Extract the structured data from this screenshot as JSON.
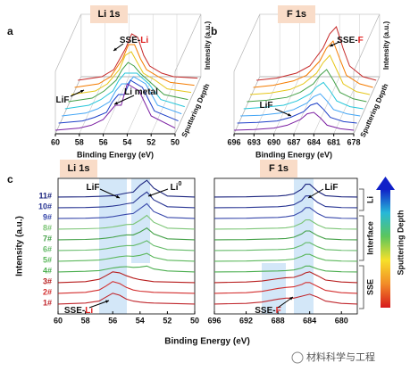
{
  "chart_data": [
    {
      "type": "waterfall3d",
      "panel": "a",
      "title": "Li 1s",
      "xlabel": "Binding Energy (eV)",
      "ylabel": "Intensity (a.u.)",
      "zlabel": "Sputtering Depth",
      "x": [
        60,
        58,
        57,
        56,
        55.5,
        55,
        54.5,
        54,
        53,
        52,
        50
      ],
      "xlim": [
        60,
        50
      ],
      "xticks": [
        60,
        58,
        56,
        54,
        52,
        50
      ],
      "annotations": [
        {
          "text": "SSE-",
          "accent": "Li"
        },
        {
          "text": "LiF"
        },
        {
          "text": "Li metal"
        }
      ],
      "series": [
        {
          "color": "#c62828",
          "values": [
            0.5,
            1,
            2,
            5,
            7,
            6.5,
            4,
            2.5,
            1.5,
            1,
            0.8
          ]
        },
        {
          "color": "#f57c00",
          "values": [
            0.5,
            1,
            2,
            4.5,
            6.5,
            6.5,
            4.5,
            3,
            2,
            1.2,
            0.8
          ]
        },
        {
          "color": "#e6c619",
          "values": [
            0.5,
            1,
            2,
            4,
            6,
            6.5,
            5,
            3.5,
            2.5,
            1.3,
            0.8
          ]
        },
        {
          "color": "#43a047",
          "values": [
            0.5,
            1,
            2,
            3.5,
            5,
            6,
            5.5,
            4.5,
            3,
            1.5,
            0.8
          ]
        },
        {
          "color": "#26c6da",
          "values": [
            0.5,
            1,
            1.8,
            3,
            4.5,
            5.5,
            5.5,
            5.5,
            4,
            1.8,
            0.8
          ]
        },
        {
          "color": "#42a5f5",
          "values": [
            0.5,
            0.9,
            1.5,
            2.5,
            4,
            5,
            5,
            6,
            5,
            2,
            0.8
          ]
        },
        {
          "color": "#1e40c8",
          "values": [
            0.5,
            0.8,
            1.3,
            2,
            3.5,
            4.5,
            4.5,
            6.5,
            5.5,
            2.2,
            0.8
          ]
        },
        {
          "color": "#7b1fa2",
          "values": [
            0.5,
            0.8,
            1.2,
            2,
            3,
            4,
            4,
            7,
            6,
            2.5,
            0.8
          ]
        }
      ]
    },
    {
      "type": "waterfall3d",
      "panel": "b",
      "title": "F 1s",
      "xlabel": "Binding Energy (eV)",
      "ylabel": "Intensity (a.u.)",
      "zlabel": "Sputtering Depth",
      "x": [
        696,
        693,
        690,
        688,
        686,
        685,
        684,
        683,
        682,
        680,
        678
      ],
      "xlim": [
        696,
        678
      ],
      "xticks": [
        696,
        693,
        690,
        687,
        684,
        681,
        678
      ],
      "annotations": [
        {
          "text": "SSE-",
          "accent": "F"
        },
        {
          "text": "LiF"
        }
      ],
      "series": [
        {
          "color": "#c62828",
          "values": [
            0.5,
            0.8,
            1.5,
            2.5,
            5,
            7,
            8,
            5,
            2.5,
            1,
            0.5
          ]
        },
        {
          "color": "#f57c00",
          "values": [
            0.5,
            0.8,
            1.4,
            2.2,
            4.2,
            6,
            7,
            4.5,
            2.2,
            1,
            0.5
          ]
        },
        {
          "color": "#e6c619",
          "values": [
            0.5,
            0.7,
            1.2,
            2,
            3.5,
            5,
            6,
            4,
            2,
            0.9,
            0.5
          ]
        },
        {
          "color": "#43a047",
          "values": [
            0.5,
            0.7,
            1.1,
            1.8,
            3,
            4.2,
            5,
            3.5,
            1.8,
            0.9,
            0.5
          ]
        },
        {
          "color": "#26c6da",
          "values": [
            0.5,
            0.7,
            1,
            1.6,
            2.6,
            3.6,
            4.2,
            3,
            1.6,
            0.8,
            0.5
          ]
        },
        {
          "color": "#42a5f5",
          "values": [
            0.5,
            0.6,
            0.9,
            1.4,
            2.3,
            3.2,
            3.6,
            2.6,
            1.4,
            0.8,
            0.5
          ]
        },
        {
          "color": "#1e40c8",
          "values": [
            0.5,
            0.6,
            0.8,
            1.3,
            2.1,
            3,
            3.3,
            2.4,
            1.3,
            0.7,
            0.5
          ]
        },
        {
          "color": "#7b1fa2",
          "values": [
            0.5,
            0.6,
            0.8,
            1.2,
            2,
            2.8,
            3,
            2.2,
            1.2,
            0.7,
            0.5
          ]
        }
      ]
    },
    {
      "type": "stacked",
      "panel": "c",
      "title": "Li 1s",
      "xlabel": "Binding Energy (eV)",
      "ylabel": "Intensity (a.u.)",
      "x": [
        60,
        58,
        57,
        56.5,
        56,
        55.5,
        55,
        54.5,
        54,
        53.5,
        53,
        52,
        50
      ],
      "xlim": [
        60,
        50
      ],
      "xticks": [
        60,
        58,
        56,
        54,
        52,
        50
      ],
      "annotations": [
        {
          "text": "LiF"
        },
        {
          "text": "Li",
          "sup": "0"
        },
        {
          "text": "SSE-",
          "accent": "Li"
        }
      ],
      "series": [
        {
          "name": "1#",
          "color": "#c0272d",
          "values": [
            0.5,
            1,
            2,
            4,
            6,
            5,
            3,
            2,
            1.5,
            1.2,
            1,
            0.8,
            0.5
          ]
        },
        {
          "name": "2#",
          "color": "#d32f2f",
          "values": [
            0.5,
            1,
            2.2,
            4.2,
            6.5,
            5.5,
            3.5,
            2.2,
            1.6,
            1.3,
            1,
            0.8,
            0.5
          ]
        },
        {
          "name": "3#",
          "color": "#b71c1c",
          "values": [
            0.5,
            1,
            2.2,
            4,
            6,
            5.5,
            4,
            2.8,
            2,
            1.5,
            1,
            0.8,
            0.5
          ]
        },
        {
          "name": "4#",
          "color": "#4caf50",
          "values": [
            0.5,
            0.8,
            1.2,
            1.8,
            2.5,
            3,
            3.2,
            2.8,
            3,
            3.5,
            2,
            1,
            0.5
          ]
        },
        {
          "name": "5#",
          "color": "#5cb85c",
          "values": [
            0.5,
            0.8,
            1.1,
            1.6,
            2.2,
            2.8,
            3.2,
            3,
            3.5,
            4.5,
            2.5,
            1,
            0.5
          ]
        },
        {
          "name": "6#",
          "color": "#66bb6a",
          "values": [
            0.5,
            0.7,
            1,
            1.4,
            2,
            2.6,
            3,
            3,
            4,
            5.5,
            3,
            1,
            0.5
          ]
        },
        {
          "name": "7#",
          "color": "#43a047",
          "values": [
            0.5,
            0.7,
            1,
            1.3,
            1.8,
            2.5,
            3,
            3,
            4.5,
            6.5,
            3.5,
            1,
            0.5
          ]
        },
        {
          "name": "8#",
          "color": "#7cc576",
          "values": [
            0.5,
            0.7,
            0.9,
            1.2,
            1.6,
            2.2,
            2.8,
            3,
            5,
            7.5,
            4,
            1,
            0.5
          ]
        },
        {
          "name": "9#",
          "color": "#3949ab",
          "values": [
            0.5,
            0.6,
            0.8,
            1,
            1.4,
            2,
            2.6,
            3,
            5.5,
            8,
            4,
            1,
            0.5
          ]
        },
        {
          "name": "10#",
          "color": "#283593",
          "values": [
            0.5,
            0.6,
            0.8,
            1,
            1.3,
            1.8,
            2.5,
            3,
            6,
            8.5,
            4.5,
            1,
            0.5
          ]
        },
        {
          "name": "11#",
          "color": "#1a237e",
          "values": [
            0.5,
            0.6,
            0.8,
            1,
            1.2,
            1.8,
            2.5,
            3,
            6.5,
            9,
            5,
            1,
            0.5
          ]
        }
      ]
    },
    {
      "type": "stacked",
      "title": "F 1s",
      "x": [
        696,
        692,
        690,
        688,
        687,
        686,
        685,
        684.5,
        684,
        683,
        682,
        680,
        678
      ],
      "xlim": [
        696,
        678
      ],
      "xticks": [
        696,
        692,
        688,
        684,
        680
      ],
      "annotations": [
        {
          "text": "LiF"
        },
        {
          "text": "SSE-",
          "accent": "F"
        }
      ],
      "colorbar": {
        "label": "Sputtering Depth",
        "colors": [
          "#d7191c",
          "#f28c28",
          "#f7e02a",
          "#5cc65c",
          "#27b8d8",
          "#1020c8"
        ],
        "groups": [
          "Li",
          "Interface",
          "SSE"
        ]
      },
      "series": [
        {
          "color": "#c0272d",
          "values": [
            0.5,
            0.8,
            1.5,
            3,
            3.5,
            3.5,
            4.5,
            5,
            5.5,
            4,
            2,
            0.8,
            0.5
          ]
        },
        {
          "color": "#d32f2f",
          "values": [
            0.5,
            0.8,
            1.5,
            3,
            3.5,
            3.8,
            5,
            6,
            6,
            4,
            2,
            0.8,
            0.5
          ]
        },
        {
          "color": "#b71c1c",
          "values": [
            0.5,
            0.8,
            1.3,
            2.5,
            3,
            3.2,
            4.5,
            5.5,
            6,
            4,
            1.8,
            0.8,
            0.5
          ]
        },
        {
          "color": "#4caf50",
          "values": [
            0.5,
            0.6,
            0.8,
            1,
            1.2,
            1.5,
            2.5,
            3.5,
            3.5,
            2,
            1,
            0.6,
            0.5
          ]
        },
        {
          "color": "#5cb85c",
          "values": [
            0.5,
            0.6,
            0.8,
            1,
            1.2,
            1.6,
            3,
            4,
            4,
            2.2,
            1,
            0.6,
            0.5
          ]
        },
        {
          "color": "#66bb6a",
          "values": [
            0.5,
            0.6,
            0.8,
            1,
            1.2,
            1.7,
            3.2,
            4.5,
            4.5,
            2.4,
            1,
            0.6,
            0.5
          ]
        },
        {
          "color": "#43a047",
          "values": [
            0.5,
            0.6,
            0.8,
            1,
            1.2,
            1.8,
            3.5,
            5,
            5,
            2.6,
            1,
            0.6,
            0.5
          ]
        },
        {
          "color": "#7cc576",
          "values": [
            0.5,
            0.6,
            0.8,
            1,
            1.2,
            1.8,
            3.6,
            5.2,
            5.2,
            2.7,
            1,
            0.6,
            0.5
          ]
        },
        {
          "color": "#3949ab",
          "values": [
            0.5,
            0.6,
            0.8,
            1,
            1.3,
            2,
            4,
            6,
            6,
            3,
            1.1,
            0.6,
            0.5
          ]
        },
        {
          "color": "#283593",
          "values": [
            0.5,
            0.6,
            0.8,
            1,
            1.3,
            2,
            4.2,
            6.5,
            6.5,
            3.2,
            1.1,
            0.6,
            0.5
          ]
        },
        {
          "color": "#1a237e",
          "values": [
            0.5,
            0.6,
            0.8,
            1,
            1.3,
            2.1,
            4.5,
            7,
            7,
            3.4,
            1.2,
            0.6,
            0.5
          ]
        }
      ]
    }
  ],
  "watermark": "材料科学与工程"
}
